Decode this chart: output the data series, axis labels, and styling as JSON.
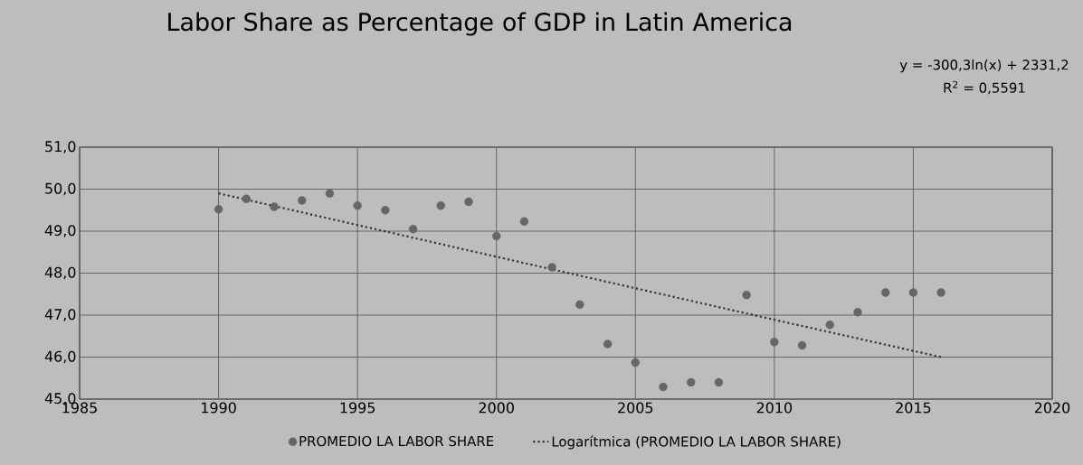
{
  "chart_data": {
    "type": "scatter",
    "title": "Labor Share as Percentage of GDP in Latin America",
    "annotations": [
      "y = -300,3ln(x) + 2331,2",
      "R$^{2}$ = 0,5591"
    ],
    "series": [
      {
        "name": "PROMEDIO LA LABOR SHARE",
        "color": "#666666",
        "marker": "circle",
        "x": [
          1990,
          1991,
          1992,
          1993,
          1994,
          1995,
          1996,
          1997,
          1998,
          1999,
          2000,
          2001,
          2002,
          2003,
          2004,
          2005,
          2006,
          2007,
          2008,
          2009,
          2010,
          2011,
          2012,
          2013,
          2014,
          2015,
          2016
        ],
        "values": [
          49.52,
          49.77,
          49.58,
          49.73,
          49.9,
          49.61,
          49.5,
          49.05,
          49.61,
          49.7,
          48.88,
          49.23,
          48.14,
          47.25,
          46.31,
          45.87,
          45.29,
          45.4,
          45.4,
          47.48,
          46.36,
          46.28,
          46.77,
          47.07,
          47.54,
          47.54,
          47.54
        ]
      },
      {
        "name": "Logarítmica (PROMEDIO LA LABOR SHARE)",
        "type": "line",
        "color": "#333333",
        "line_style": "dotted",
        "marker": "none",
        "x": [
          1990,
          2000,
          2010,
          2016
        ],
        "values": [
          49.9,
          48.39,
          46.89,
          46.0
        ]
      }
    ],
    "xlim": [
      1985,
      2020
    ],
    "ylim": [
      45,
      51
    ],
    "xticks": [
      1985,
      1990,
      1995,
      2000,
      2005,
      2010,
      2015,
      2020
    ],
    "yticks": [
      {
        "value": 45,
        "label": "45,0"
      },
      {
        "value": 46,
        "label": "46,0"
      },
      {
        "value": 47,
        "label": "47,0"
      },
      {
        "value": 48,
        "label": "48,0"
      },
      {
        "value": 49,
        "label": "49,0"
      },
      {
        "value": 50,
        "label": "50,0"
      },
      {
        "value": 51,
        "label": "51,0"
      }
    ],
    "grid": true,
    "legend": "bottom"
  }
}
